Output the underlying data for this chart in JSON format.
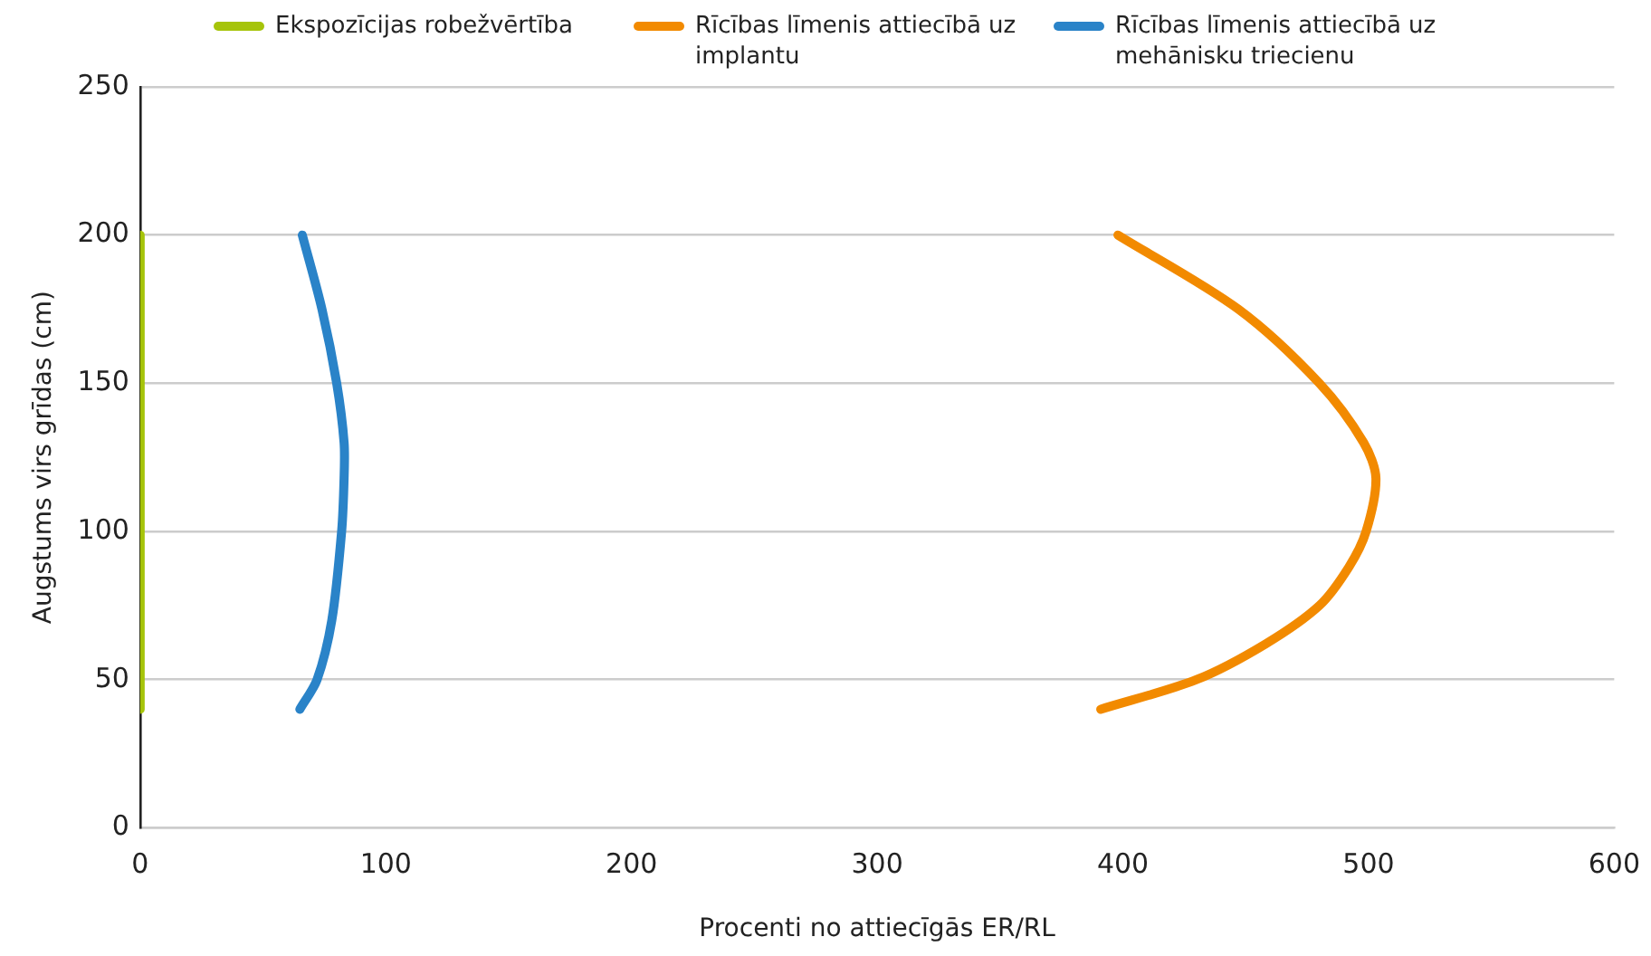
{
  "chart_data": {
    "type": "line",
    "xlabel": "Procenti no attiecīgās ER/RL",
    "ylabel": "Augstums virs grīdas (cm)",
    "xlim": [
      0,
      600
    ],
    "xticks": [
      0,
      100,
      200,
      300,
      400,
      500,
      600
    ],
    "ylim": [
      0,
      250
    ],
    "yticks": [
      0,
      50,
      100,
      150,
      200,
      250
    ],
    "grid": "y",
    "legend": "top",
    "marker": "none",
    "line_style": "solid",
    "series": [
      {
        "name": "Ekspozīcijas robežvērtība",
        "color": "#a6c40a",
        "x": [
          0,
          0
        ],
        "values": [
          40,
          200
        ]
      },
      {
        "name": "Rīcības līmenis attiecībā uz implantu",
        "color": "#f28a00",
        "x": [
          391,
          430,
          458,
          480,
          492,
          499,
          503,
          498,
          480,
          447,
          398
        ],
        "values": [
          40,
          50,
          62,
          75,
          88,
          100,
          118,
          130,
          150,
          175,
          200
        ]
      },
      {
        "name": "Rīcības līmenis attiecībā uz mehānisku triecienu",
        "color": "#2a83c8",
        "x": [
          65,
          72,
          78,
          82,
          83,
          83,
          80,
          74,
          66
        ],
        "values": [
          40,
          50,
          70,
          100,
          118,
          130,
          150,
          175,
          200
        ]
      }
    ]
  }
}
